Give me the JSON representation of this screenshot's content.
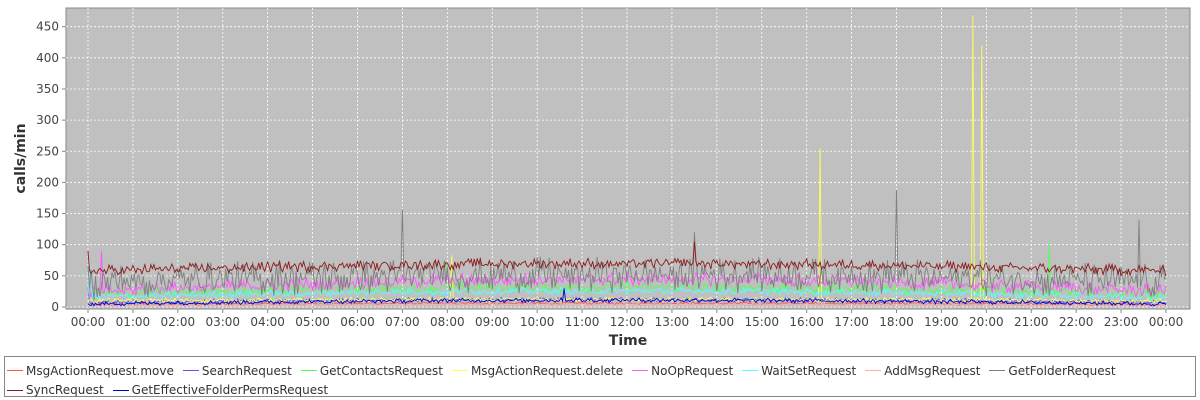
{
  "chart_data": {
    "type": "line",
    "xlabel": "Time",
    "ylabel": "calls/min",
    "x_tick_labels": [
      "00:00",
      "01:00",
      "02:00",
      "03:00",
      "04:00",
      "05:00",
      "06:00",
      "07:00",
      "08:00",
      "09:00",
      "10:00",
      "11:00",
      "12:00",
      "13:00",
      "14:00",
      "15:00",
      "16:00",
      "17:00",
      "18:00",
      "19:00",
      "20:00",
      "21:00",
      "22:00",
      "23:00",
      "00:00"
    ],
    "y_ticks": [
      0,
      50,
      100,
      150,
      200,
      250,
      300,
      350,
      400,
      450
    ],
    "ylim": [
      0,
      480
    ],
    "xlim_hours": [
      0,
      24
    ],
    "grid": true,
    "legend_position": "bottom",
    "series": [
      {
        "name": "MsgActionRequest.move",
        "color": "#ff5555",
        "base": 4,
        "amp": 4,
        "trend": 2,
        "spikes": [
          [
            11.5,
            12
          ],
          [
            16.0,
            14
          ]
        ]
      },
      {
        "name": "SearchRequest",
        "color": "#5555ff",
        "base": 8,
        "amp": 6,
        "trend": 4,
        "spikes": [
          [
            0.0,
            30
          ]
        ]
      },
      {
        "name": "GetContactsRequest",
        "color": "#55ff55",
        "base": 22,
        "amp": 14,
        "trend": 10,
        "spikes": [
          [
            21.4,
            102
          ],
          [
            8.0,
            70
          ]
        ]
      },
      {
        "name": "MsgActionRequest.delete",
        "color": "#ffff55",
        "base": 10,
        "amp": 6,
        "trend": 2,
        "spikes": [
          [
            8.1,
            83
          ],
          [
            16.3,
            255
          ],
          [
            19.7,
            468
          ],
          [
            19.9,
            420
          ]
        ]
      },
      {
        "name": "NoOpRequest",
        "color": "#ff55ff",
        "base": 25,
        "amp": 18,
        "trend": 20,
        "spikes": [
          [
            0.3,
            90
          ]
        ]
      },
      {
        "name": "WaitSetRequest",
        "color": "#55ffff",
        "base": 16,
        "amp": 10,
        "trend": 10,
        "spikes": [
          [
            0.05,
            62
          ]
        ]
      },
      {
        "name": "AddMsgRequest",
        "color": "#ffafaf",
        "base": 3,
        "amp": 3,
        "trend": 1,
        "spikes": []
      },
      {
        "name": "GetFolderRequest",
        "color": "#808080",
        "base": 40,
        "amp": 45,
        "trend": 12,
        "spikes": [
          [
            7.0,
            157
          ],
          [
            18.0,
            188
          ],
          [
            23.4,
            140
          ],
          [
            13.5,
            120
          ]
        ]
      },
      {
        "name": "SyncRequest",
        "color": "#8b1a1a",
        "base": 58,
        "amp": 14,
        "trend": 12,
        "spikes": [
          [
            13.5,
            105
          ],
          [
            0.0,
            90
          ]
        ]
      },
      {
        "name": "GetEffectiveFolderPermsRequest",
        "color": "#0000cc",
        "base": 5,
        "amp": 6,
        "trend": 6,
        "spikes": [
          [
            10.6,
            30
          ]
        ]
      }
    ]
  }
}
